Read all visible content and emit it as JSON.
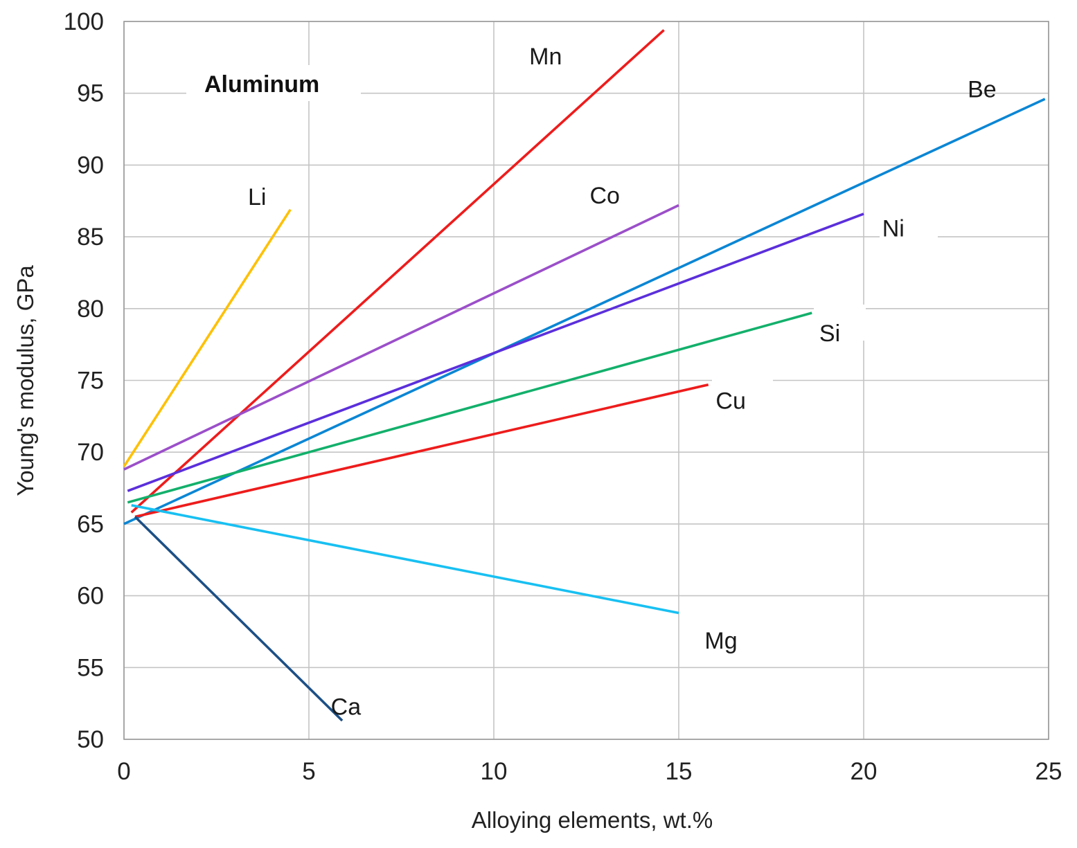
{
  "chart_data": {
    "type": "line",
    "title": "Aluminum",
    "xlabel": "Alloying elements, wt.%",
    "ylabel": "Young's modulus, GPa",
    "xlim": [
      0,
      25
    ],
    "ylim": [
      50,
      100
    ],
    "x_ticks": [
      0,
      5,
      10,
      15,
      20,
      25
    ],
    "y_ticks": [
      50,
      55,
      60,
      65,
      70,
      75,
      80,
      85,
      90,
      95,
      100
    ],
    "grid": true,
    "legend": "none (series labeled inline near line ends)",
    "series": [
      {
        "name": "Li",
        "color": "#ffc000",
        "x": [
          0,
          4.5
        ],
        "y": [
          69,
          86.9
        ]
      },
      {
        "name": "Mn",
        "color": "#ee1c1c",
        "x": [
          0.2,
          14.6
        ],
        "y": [
          65.8,
          99.4
        ]
      },
      {
        "name": "Co",
        "color": "#9b4fc9",
        "x": [
          0,
          15
        ],
        "y": [
          68.8,
          87.2
        ]
      },
      {
        "name": "Be",
        "color": "#0b86d4",
        "x": [
          0,
          24.9
        ],
        "y": [
          65,
          94.6
        ]
      },
      {
        "name": "Ni",
        "color": "#5b2fdb",
        "x": [
          0.1,
          20
        ],
        "y": [
          67.3,
          86.6
        ]
      },
      {
        "name": "Si",
        "color": "#13b06b",
        "x": [
          0.1,
          18.6
        ],
        "y": [
          66.5,
          79.7
        ]
      },
      {
        "name": "Cu",
        "color": "#ee1c1c",
        "x": [
          0.3,
          15.8
        ],
        "y": [
          65.5,
          74.7
        ]
      },
      {
        "name": "Mg",
        "color": "#18c0f2",
        "x": [
          0.2,
          15
        ],
        "y": [
          66.3,
          58.8
        ]
      },
      {
        "name": "Ca",
        "color": "#1c4f86",
        "x": [
          0.3,
          5.9
        ],
        "y": [
          65.5,
          51.3
        ]
      }
    ]
  }
}
